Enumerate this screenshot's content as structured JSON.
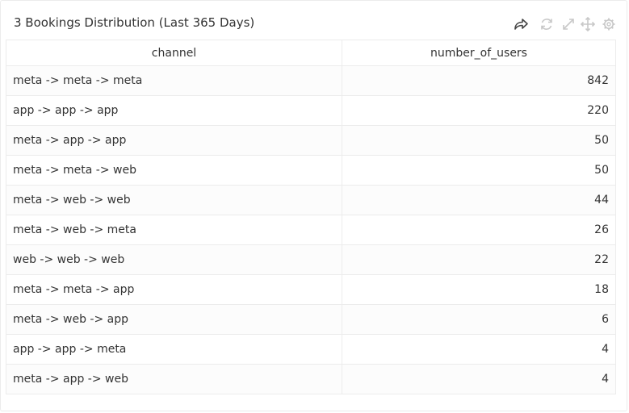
{
  "panel": {
    "title": "3 Bookings Distribution (Last 365 Days)",
    "icons": [
      "share-icon",
      "refresh-icon",
      "expand-icon",
      "move-icon",
      "gear-icon"
    ]
  },
  "table": {
    "columns": [
      "channel",
      "number_of_users"
    ],
    "rows": [
      {
        "channel": "meta -> meta -> meta",
        "number_of_users": "842"
      },
      {
        "channel": "app -> app -> app",
        "number_of_users": "220"
      },
      {
        "channel": "meta -> app -> app",
        "number_of_users": "50"
      },
      {
        "channel": "meta -> meta -> web",
        "number_of_users": "50"
      },
      {
        "channel": "meta -> web -> web",
        "number_of_users": "44"
      },
      {
        "channel": "meta -> web -> meta",
        "number_of_users": "26"
      },
      {
        "channel": "web -> web -> web",
        "number_of_users": "22"
      },
      {
        "channel": "meta -> meta -> app",
        "number_of_users": "18"
      },
      {
        "channel": "meta -> web -> app",
        "number_of_users": "6"
      },
      {
        "channel": "app -> app -> meta",
        "number_of_users": "4"
      },
      {
        "channel": "meta -> app -> web",
        "number_of_users": "4"
      }
    ]
  },
  "colors": {
    "text": "#333333",
    "icon_dark": "#444444",
    "icon_light": "#c8c8c8",
    "border": "#ececec"
  }
}
